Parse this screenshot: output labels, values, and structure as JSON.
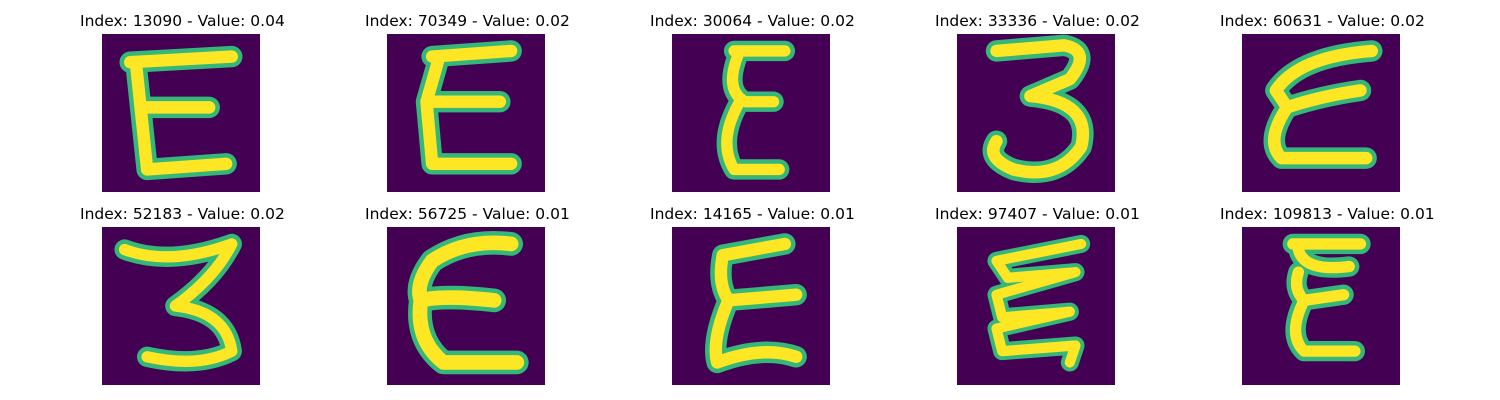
{
  "figure": {
    "panels": [
      {
        "title": "Index: 13090 - Value: 0.04",
        "index": 13090,
        "value": 0.04,
        "glyph": "E",
        "variant": "block-E"
      },
      {
        "title": "Index: 70349 - Value: 0.02",
        "index": 70349,
        "value": 0.02,
        "glyph": "E",
        "variant": "narrow-E"
      },
      {
        "title": "Index: 30064 - Value: 0.02",
        "index": 30064,
        "value": 0.02,
        "glyph": "E",
        "variant": "thin-E"
      },
      {
        "title": "Index: 33336 - Value: 0.02",
        "index": 33336,
        "value": 0.02,
        "glyph": "3",
        "variant": "three"
      },
      {
        "title": "Index: 60631 - Value: 0.02",
        "index": 60631,
        "value": 0.02,
        "glyph": "E",
        "variant": "slanted-E"
      },
      {
        "title": "Index: 52183 - Value: 0.02",
        "index": 52183,
        "value": 0.02,
        "glyph": "3",
        "variant": "three-wide"
      },
      {
        "title": "Index: 56725 - Value: 0.01",
        "index": 56725,
        "value": 0.01,
        "glyph": "E",
        "variant": "round-E"
      },
      {
        "title": "Index: 14165 - Value: 0.01",
        "index": 14165,
        "value": 0.01,
        "glyph": "E",
        "variant": "tilted-E"
      },
      {
        "title": "Index: 97407 - Value: 0.01",
        "index": 97407,
        "value": 0.01,
        "glyph": "E",
        "variant": "zigzag-E"
      },
      {
        "title": "Index: 109813 - Value: 0.01",
        "index": 109813,
        "value": 0.01,
        "glyph": "E",
        "variant": "compact-E"
      }
    ]
  },
  "colors": {
    "background": "#440154",
    "stroke_core": "#fde725",
    "stroke_edge": "#35b779"
  }
}
